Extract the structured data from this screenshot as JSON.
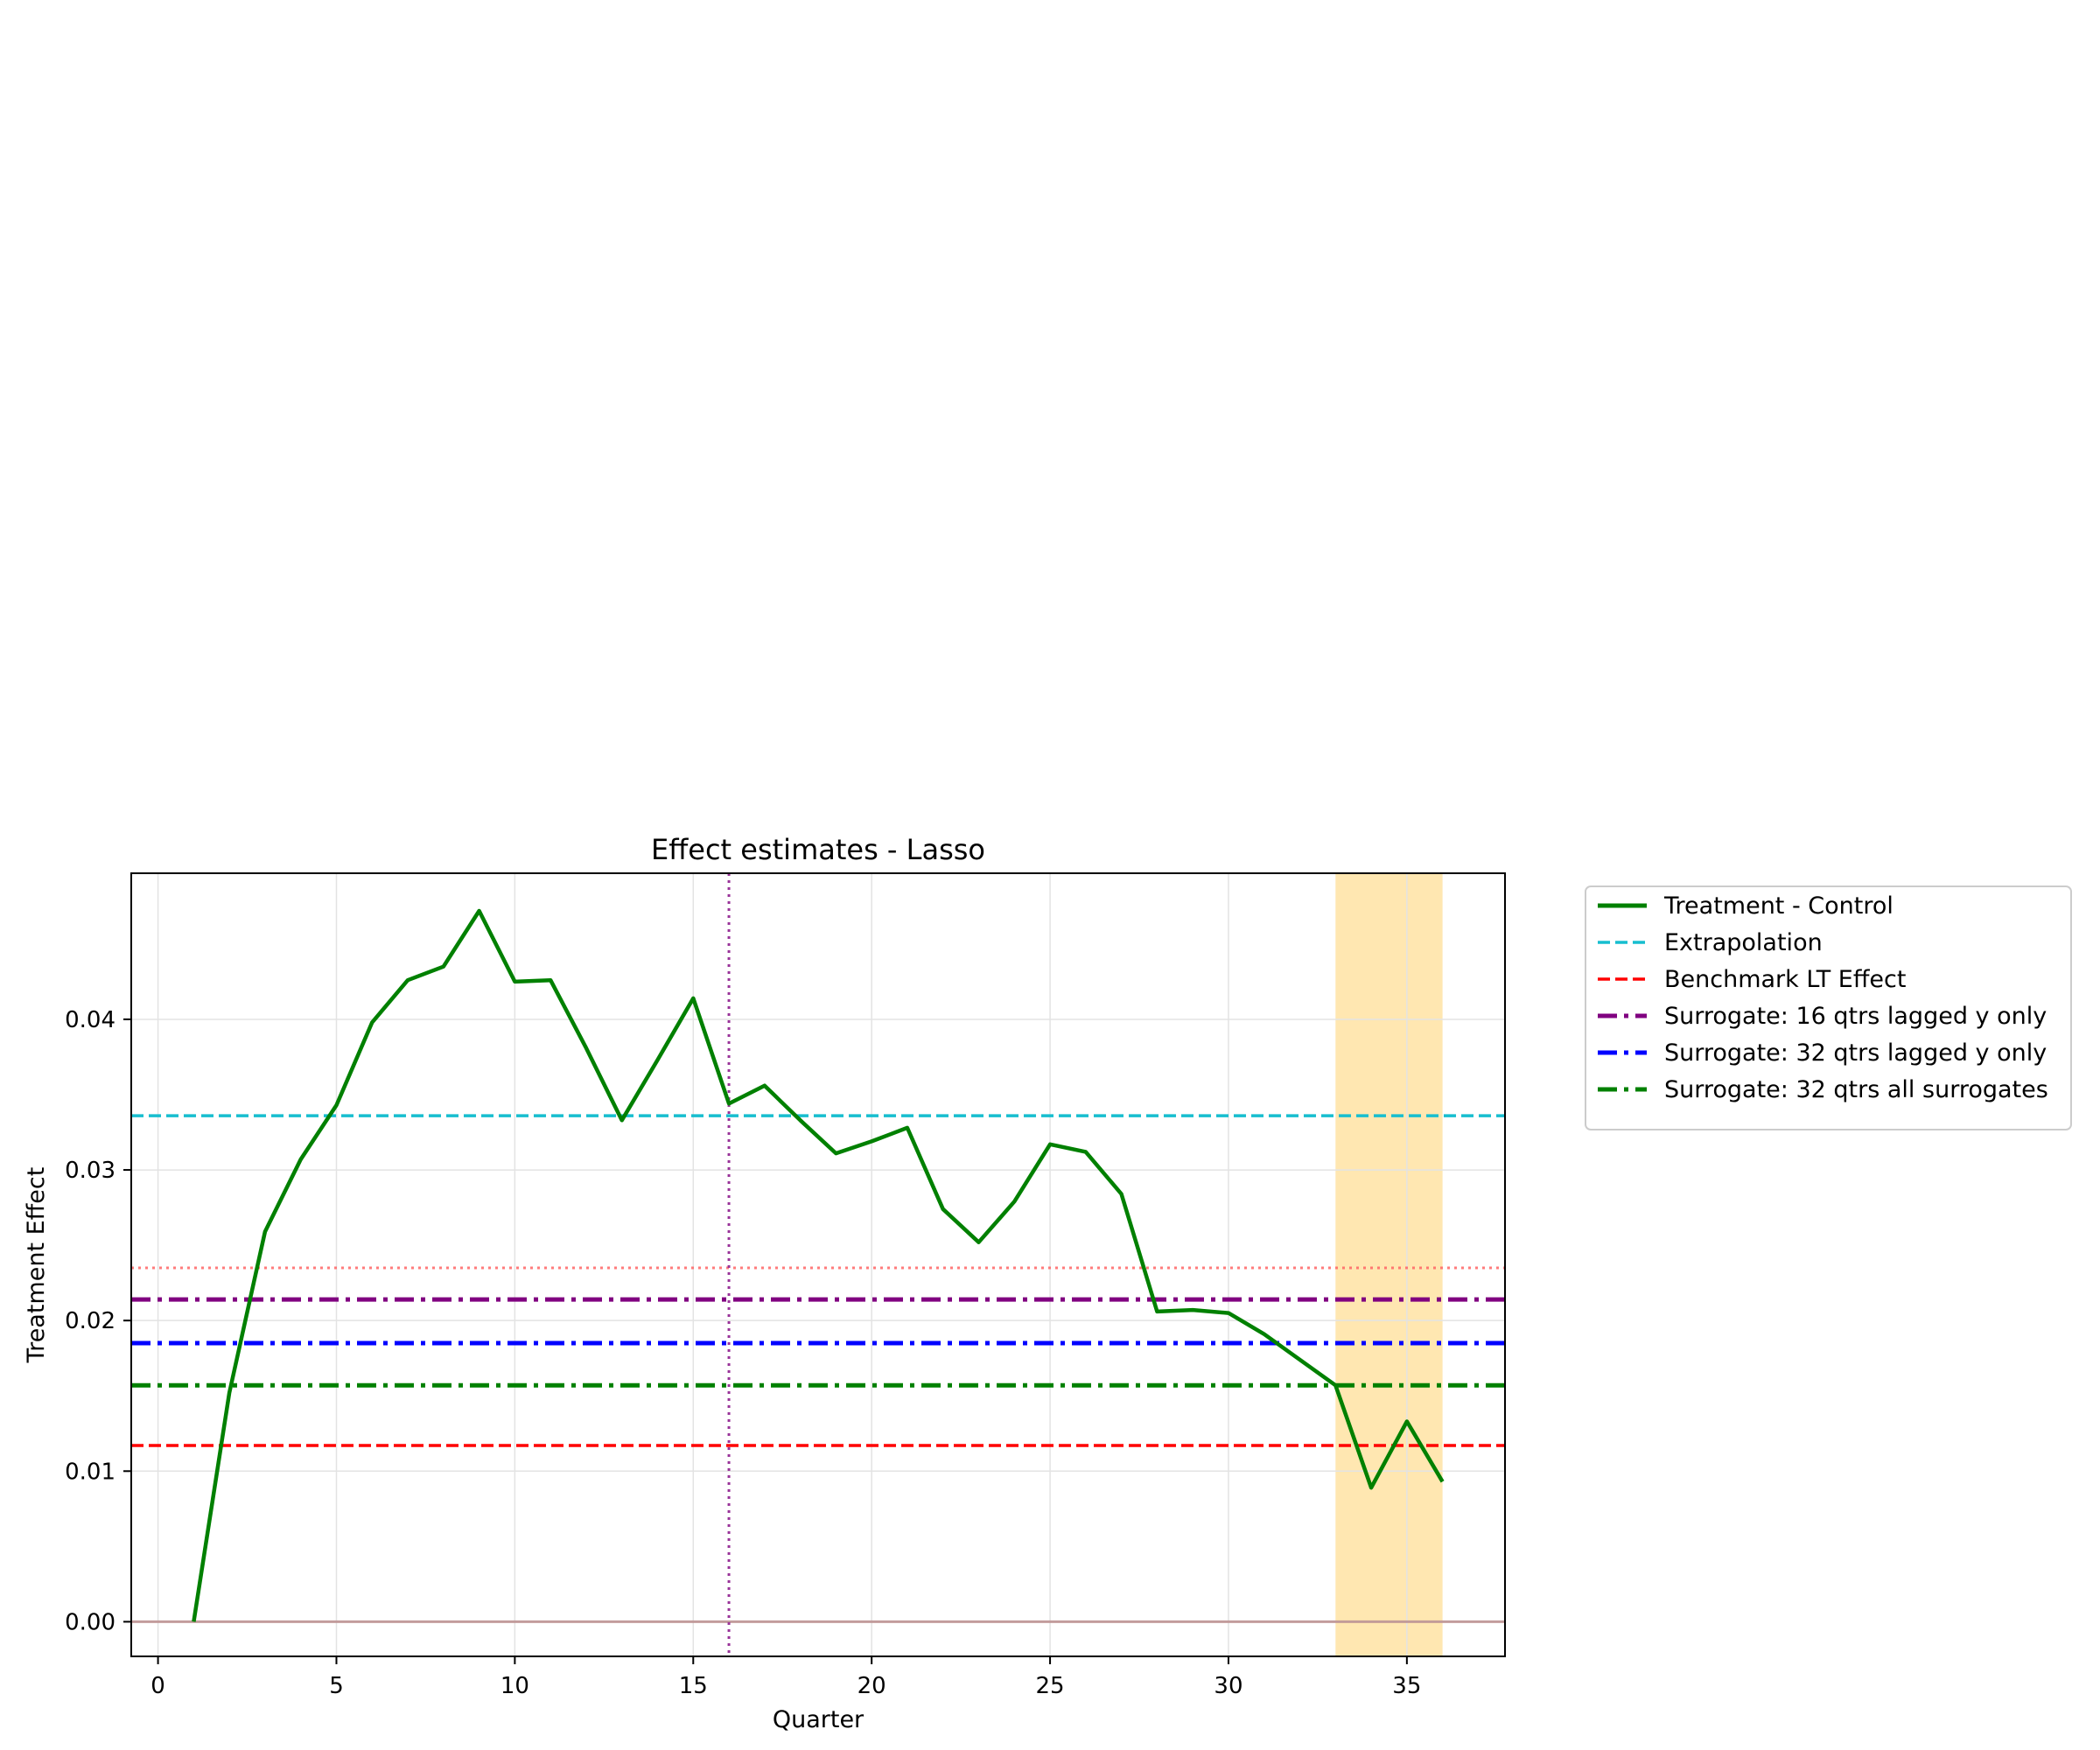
{
  "chart_data": {
    "type": "line",
    "title": "Effect estimates - Lasso",
    "xlabel": "Quarter",
    "ylabel": "Treatment Effect",
    "xlim": [
      -0.75,
      37.75
    ],
    "ylim": [
      -0.0023,
      0.0497
    ],
    "x_ticks": [
      0,
      5,
      10,
      15,
      20,
      25,
      30,
      35
    ],
    "y_ticks": [
      0.0,
      0.01,
      0.02,
      0.03,
      0.04
    ],
    "y_tick_labels": [
      "0.00",
      "0.01",
      "0.02",
      "0.03",
      "0.04"
    ],
    "grid": true,
    "legend_position": "outside-right",
    "series": [
      {
        "name": "Treatment - Control",
        "style": "solid",
        "color": "#008000",
        "x": [
          1,
          2,
          3,
          4,
          5,
          6,
          7,
          8,
          9,
          10,
          11,
          12,
          13,
          14,
          15,
          16,
          17,
          18,
          19,
          20,
          21,
          22,
          23,
          24,
          25,
          26,
          27,
          28,
          29,
          30,
          31,
          32,
          33,
          34,
          35,
          36
        ],
        "y": [
          0.0,
          0.0152,
          0.0259,
          0.0307,
          0.0343,
          0.0398,
          0.0426,
          0.0435,
          0.0472,
          0.0425,
          0.0426,
          0.0381,
          0.0333,
          0.0373,
          0.0414,
          0.0344,
          0.0356,
          0.0333,
          0.0311,
          0.0319,
          0.0328,
          0.0274,
          0.0252,
          0.0279,
          0.0317,
          0.0312,
          0.0284,
          0.0206,
          0.0207,
          0.0205,
          0.0191,
          0.0174,
          0.0157,
          0.0089,
          0.0133,
          0.0093
        ]
      }
    ],
    "hlines": [
      {
        "name": "Extrapolation",
        "y": 0.0336,
        "style": "dashed",
        "color": "#17becf"
      },
      {
        "name": "Benchmark LT Effect",
        "y": 0.0117,
        "style": "dashed",
        "color": "#ff0000"
      },
      {
        "name": "Surrogate: 16 qtrs lagged y only",
        "y": 0.0214,
        "style": "dashdot",
        "color": "#800080"
      },
      {
        "name": "Surrogate: 32 qtrs lagged y only",
        "y": 0.0185,
        "style": "dashdot",
        "color": "#0000ff"
      },
      {
        "name": "Surrogate: 32 qtrs all surrogates",
        "y": 0.0157,
        "style": "dashdot",
        "color": "#008000"
      }
    ],
    "unlabeled_hlines": [
      {
        "y": 0.0235,
        "style": "dotted",
        "color": "#ff6666"
      },
      {
        "y": 0.0,
        "style": "solid",
        "color": "#bc8f8f"
      }
    ],
    "vlines": [
      {
        "x": 16,
        "style": "dotted",
        "color": "#993399"
      }
    ],
    "shaded_regions": [
      {
        "x_start": 33,
        "x_end": 36,
        "color": "#ffe4a8"
      }
    ]
  }
}
